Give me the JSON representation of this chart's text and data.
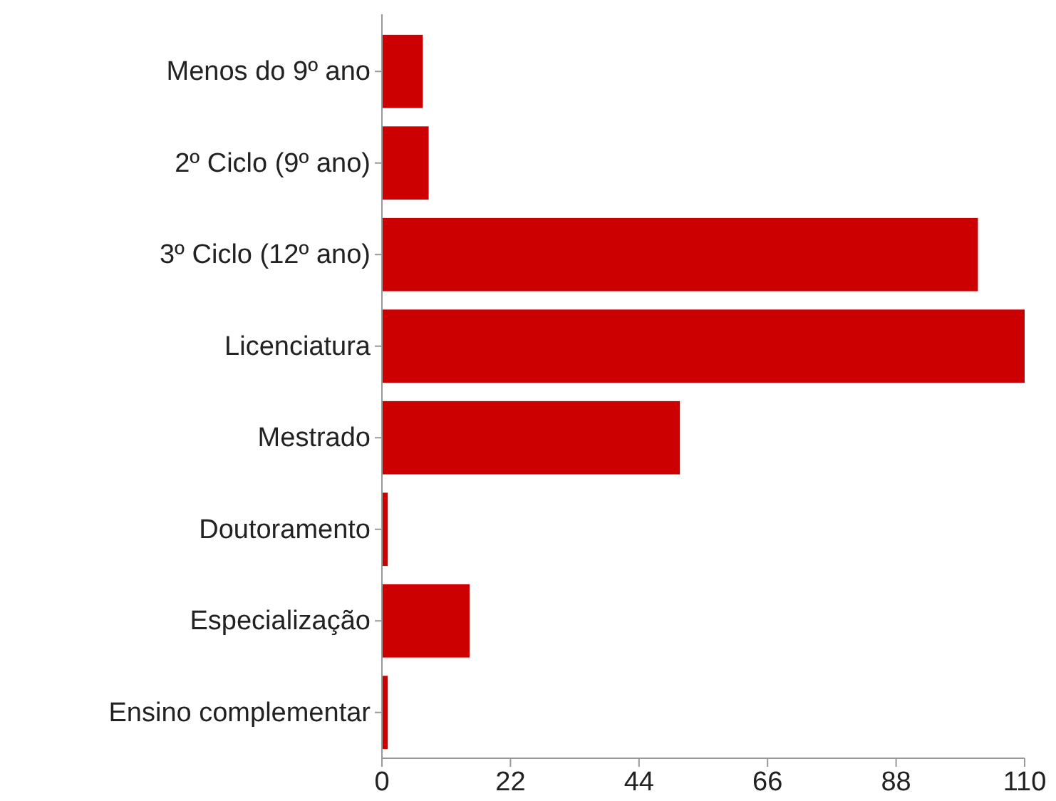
{
  "chart_data": {
    "type": "bar",
    "orientation": "horizontal",
    "categories": [
      "Menos do 9º ano",
      "2º Ciclo (9º ano)",
      "3º Ciclo (12º ano)",
      "Licenciatura",
      "Mestrado",
      "Doutoramento",
      "Especialização",
      "Ensino complementar"
    ],
    "values": [
      7,
      8,
      102,
      110,
      51,
      1,
      15,
      1
    ],
    "color": "#cc0000",
    "xlim": [
      0,
      110
    ],
    "xticks": [
      0,
      22,
      44,
      66,
      88,
      110
    ],
    "grid": false
  }
}
